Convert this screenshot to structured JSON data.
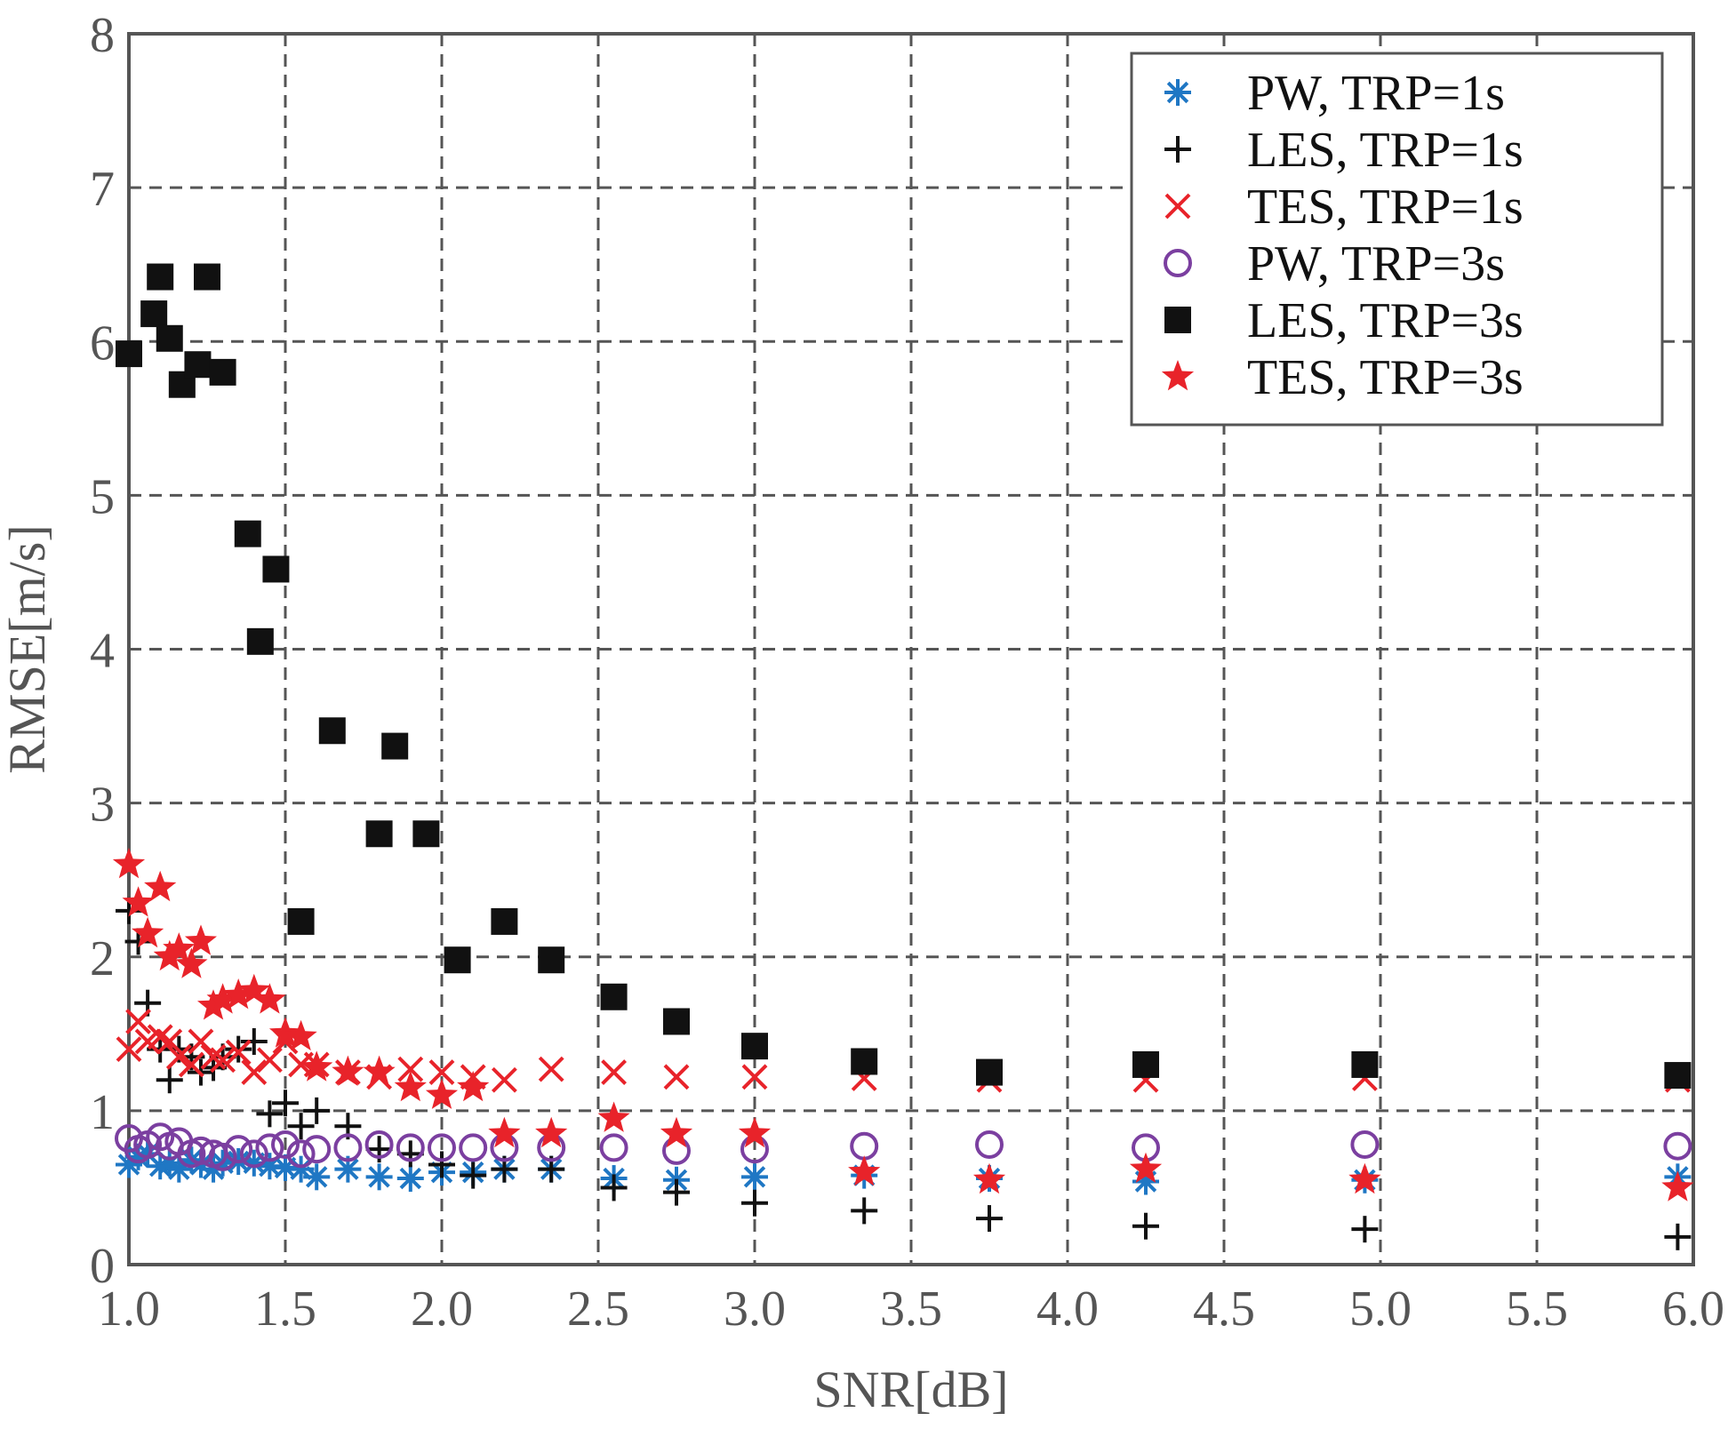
{
  "chart_data": {
    "type": "scatter",
    "title": "",
    "xlabel": "SNR[dB]",
    "ylabel": "RMSE[m/s]",
    "xlim": [
      1.0,
      6.0
    ],
    "ylim": [
      0,
      8
    ],
    "grid": true,
    "legend_position": "top-right",
    "x_ticks": [
      "1.0",
      "1.5",
      "2.0",
      "2.5",
      "3.0",
      "3.5",
      "4.0",
      "4.5",
      "5.0",
      "5.5",
      "6.0"
    ],
    "y_ticks": [
      "0",
      "1",
      "2",
      "3",
      "4",
      "5",
      "6",
      "7",
      "8"
    ],
    "series": [
      {
        "name": "PW, TRP=1s",
        "marker": "asterisk",
        "color": "#1f77c4",
        "x": [
          1.0,
          1.03,
          1.06,
          1.1,
          1.13,
          1.16,
          1.2,
          1.23,
          1.27,
          1.3,
          1.35,
          1.4,
          1.45,
          1.5,
          1.55,
          1.6,
          1.7,
          1.8,
          1.9,
          2.0,
          2.1,
          2.2,
          2.35,
          2.55,
          2.75,
          3.0,
          3.35,
          3.75,
          4.25,
          4.95,
          5.95
        ],
        "y": [
          0.65,
          0.7,
          0.72,
          0.64,
          0.66,
          0.62,
          0.68,
          0.65,
          0.62,
          0.66,
          0.67,
          0.66,
          0.64,
          0.63,
          0.62,
          0.57,
          0.62,
          0.57,
          0.56,
          0.6,
          0.6,
          0.62,
          0.62,
          0.56,
          0.55,
          0.57,
          0.58,
          0.56,
          0.54,
          0.55,
          0.57
        ]
      },
      {
        "name": "LES, TRP=1s",
        "marker": "plus",
        "color": "#111111",
        "x": [
          1.0,
          1.03,
          1.06,
          1.1,
          1.13,
          1.16,
          1.2,
          1.23,
          1.27,
          1.3,
          1.35,
          1.4,
          1.45,
          1.5,
          1.55,
          1.6,
          1.7,
          1.8,
          1.9,
          2.0,
          2.1,
          2.2,
          2.35,
          2.55,
          2.75,
          3.0,
          3.35,
          3.75,
          4.25,
          4.95,
          5.95
        ],
        "y": [
          2.3,
          2.1,
          1.7,
          1.4,
          1.2,
          1.4,
          1.35,
          1.25,
          1.28,
          1.35,
          1.4,
          1.45,
          0.98,
          1.05,
          0.9,
          1.0,
          0.9,
          0.75,
          0.72,
          0.65,
          0.58,
          0.62,
          0.62,
          0.5,
          0.47,
          0.4,
          0.35,
          0.3,
          0.25,
          0.23,
          0.18
        ]
      },
      {
        "name": "TES, TRP=1s",
        "marker": "x",
        "color": "#e8232a",
        "x": [
          1.0,
          1.03,
          1.06,
          1.1,
          1.13,
          1.16,
          1.2,
          1.23,
          1.27,
          1.3,
          1.35,
          1.4,
          1.45,
          1.5,
          1.55,
          1.6,
          1.7,
          1.8,
          1.9,
          2.0,
          2.1,
          2.2,
          2.35,
          2.55,
          2.75,
          3.0,
          3.35,
          3.75,
          4.25,
          4.95,
          5.95
        ],
        "y": [
          1.4,
          1.58,
          1.45,
          1.48,
          1.45,
          1.35,
          1.3,
          1.45,
          1.35,
          1.33,
          1.38,
          1.25,
          1.33,
          1.45,
          1.3,
          1.3,
          1.25,
          1.22,
          1.27,
          1.25,
          1.22,
          1.2,
          1.27,
          1.25,
          1.22,
          1.22,
          1.21,
          1.2,
          1.2,
          1.21,
          1.2
        ]
      },
      {
        "name": "PW, TRP=3s",
        "marker": "circle",
        "color": "#7b3fa0",
        "x": [
          1.0,
          1.03,
          1.06,
          1.1,
          1.13,
          1.16,
          1.2,
          1.23,
          1.27,
          1.3,
          1.35,
          1.4,
          1.45,
          1.5,
          1.55,
          1.6,
          1.7,
          1.8,
          1.9,
          2.0,
          2.1,
          2.2,
          2.35,
          2.55,
          2.75,
          3.0,
          3.35,
          3.75,
          4.25,
          4.95,
          5.95
        ],
        "y": [
          0.82,
          0.75,
          0.78,
          0.83,
          0.77,
          0.8,
          0.72,
          0.74,
          0.72,
          0.7,
          0.75,
          0.72,
          0.76,
          0.78,
          0.72,
          0.75,
          0.76,
          0.78,
          0.76,
          0.76,
          0.76,
          0.76,
          0.76,
          0.76,
          0.74,
          0.75,
          0.77,
          0.78,
          0.76,
          0.78,
          0.77
        ]
      },
      {
        "name": "LES, TRP=3s",
        "marker": "square",
        "color": "#111111",
        "x": [
          1.0,
          1.08,
          1.1,
          1.13,
          1.17,
          1.22,
          1.25,
          1.3,
          1.38,
          1.42,
          1.47,
          1.55,
          1.65,
          1.8,
          1.85,
          1.95,
          2.05,
          2.2,
          2.35,
          2.55,
          2.75,
          3.0,
          3.35,
          3.75,
          4.25,
          4.95,
          5.95
        ],
        "y": [
          5.92,
          6.18,
          6.42,
          6.02,
          5.72,
          5.85,
          6.42,
          5.8,
          4.75,
          4.05,
          4.52,
          2.23,
          3.47,
          2.8,
          3.37,
          2.8,
          1.98,
          2.23,
          1.98,
          1.74,
          1.58,
          1.42,
          1.32,
          1.25,
          1.3,
          1.3,
          1.23
        ]
      },
      {
        "name": "TES, TRP=3s",
        "marker": "star",
        "color": "#e8232a",
        "x": [
          1.0,
          1.03,
          1.06,
          1.1,
          1.13,
          1.16,
          1.2,
          1.23,
          1.27,
          1.3,
          1.35,
          1.4,
          1.45,
          1.5,
          1.55,
          1.6,
          1.7,
          1.8,
          1.9,
          2.0,
          2.1,
          2.2,
          2.35,
          2.55,
          2.75,
          3.0,
          3.35,
          3.75,
          4.25,
          4.95,
          5.95
        ],
        "y": [
          2.6,
          2.35,
          2.15,
          2.45,
          2.0,
          2.05,
          1.95,
          2.1,
          1.68,
          1.72,
          1.75,
          1.78,
          1.72,
          1.5,
          1.48,
          1.28,
          1.25,
          1.25,
          1.15,
          1.1,
          1.15,
          0.85,
          0.85,
          0.95,
          0.85,
          0.85,
          0.6,
          0.55,
          0.62,
          0.55,
          0.5
        ]
      }
    ]
  }
}
